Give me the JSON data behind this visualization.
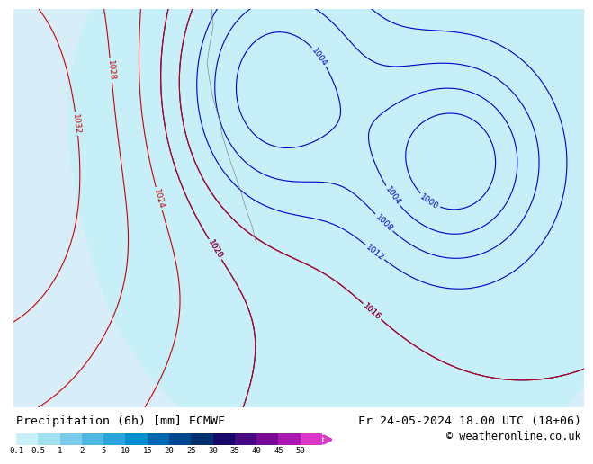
{
  "title_left": "Precipitation (6h) [mm] ECMWF",
  "title_right": "Fr 24-05-2024 18.00 UTC (18+06)",
  "copyright": "© weatheronline.co.uk",
  "colorbar_levels": [
    0.1,
    0.5,
    1,
    2,
    5,
    10,
    15,
    20,
    25,
    30,
    35,
    40,
    45,
    50
  ],
  "colorbar_colors": [
    "#c8f0f8",
    "#a0e0f0",
    "#78cce8",
    "#50b8e0",
    "#28a4d8",
    "#0090d0",
    "#0068b0",
    "#004890",
    "#003070",
    "#180a6a",
    "#480a80",
    "#780a96",
    "#aa18b0",
    "#dc38c8",
    "#e870d8"
  ],
  "ocean_color": "#d8eef8",
  "land_color": "#f0f0e8",
  "precip_light_cyan": "#b8eaf8",
  "precip_cyan": "#80d4f0",
  "precip_blue_light": "#58b8e8",
  "precip_blue": "#3090d0",
  "precip_dark_blue": "#1060a8",
  "precip_purple": "#8020a0",
  "precip_magenta": "#cc30c0",
  "land_green_light": "#d8e8b0",
  "land_green": "#b8d890",
  "contour_blue_color": "#0000cc",
  "contour_red_color": "#cc0000",
  "background_color": "#ffffff",
  "label_fontsize": 8.5,
  "title_fontsize": 9.5
}
